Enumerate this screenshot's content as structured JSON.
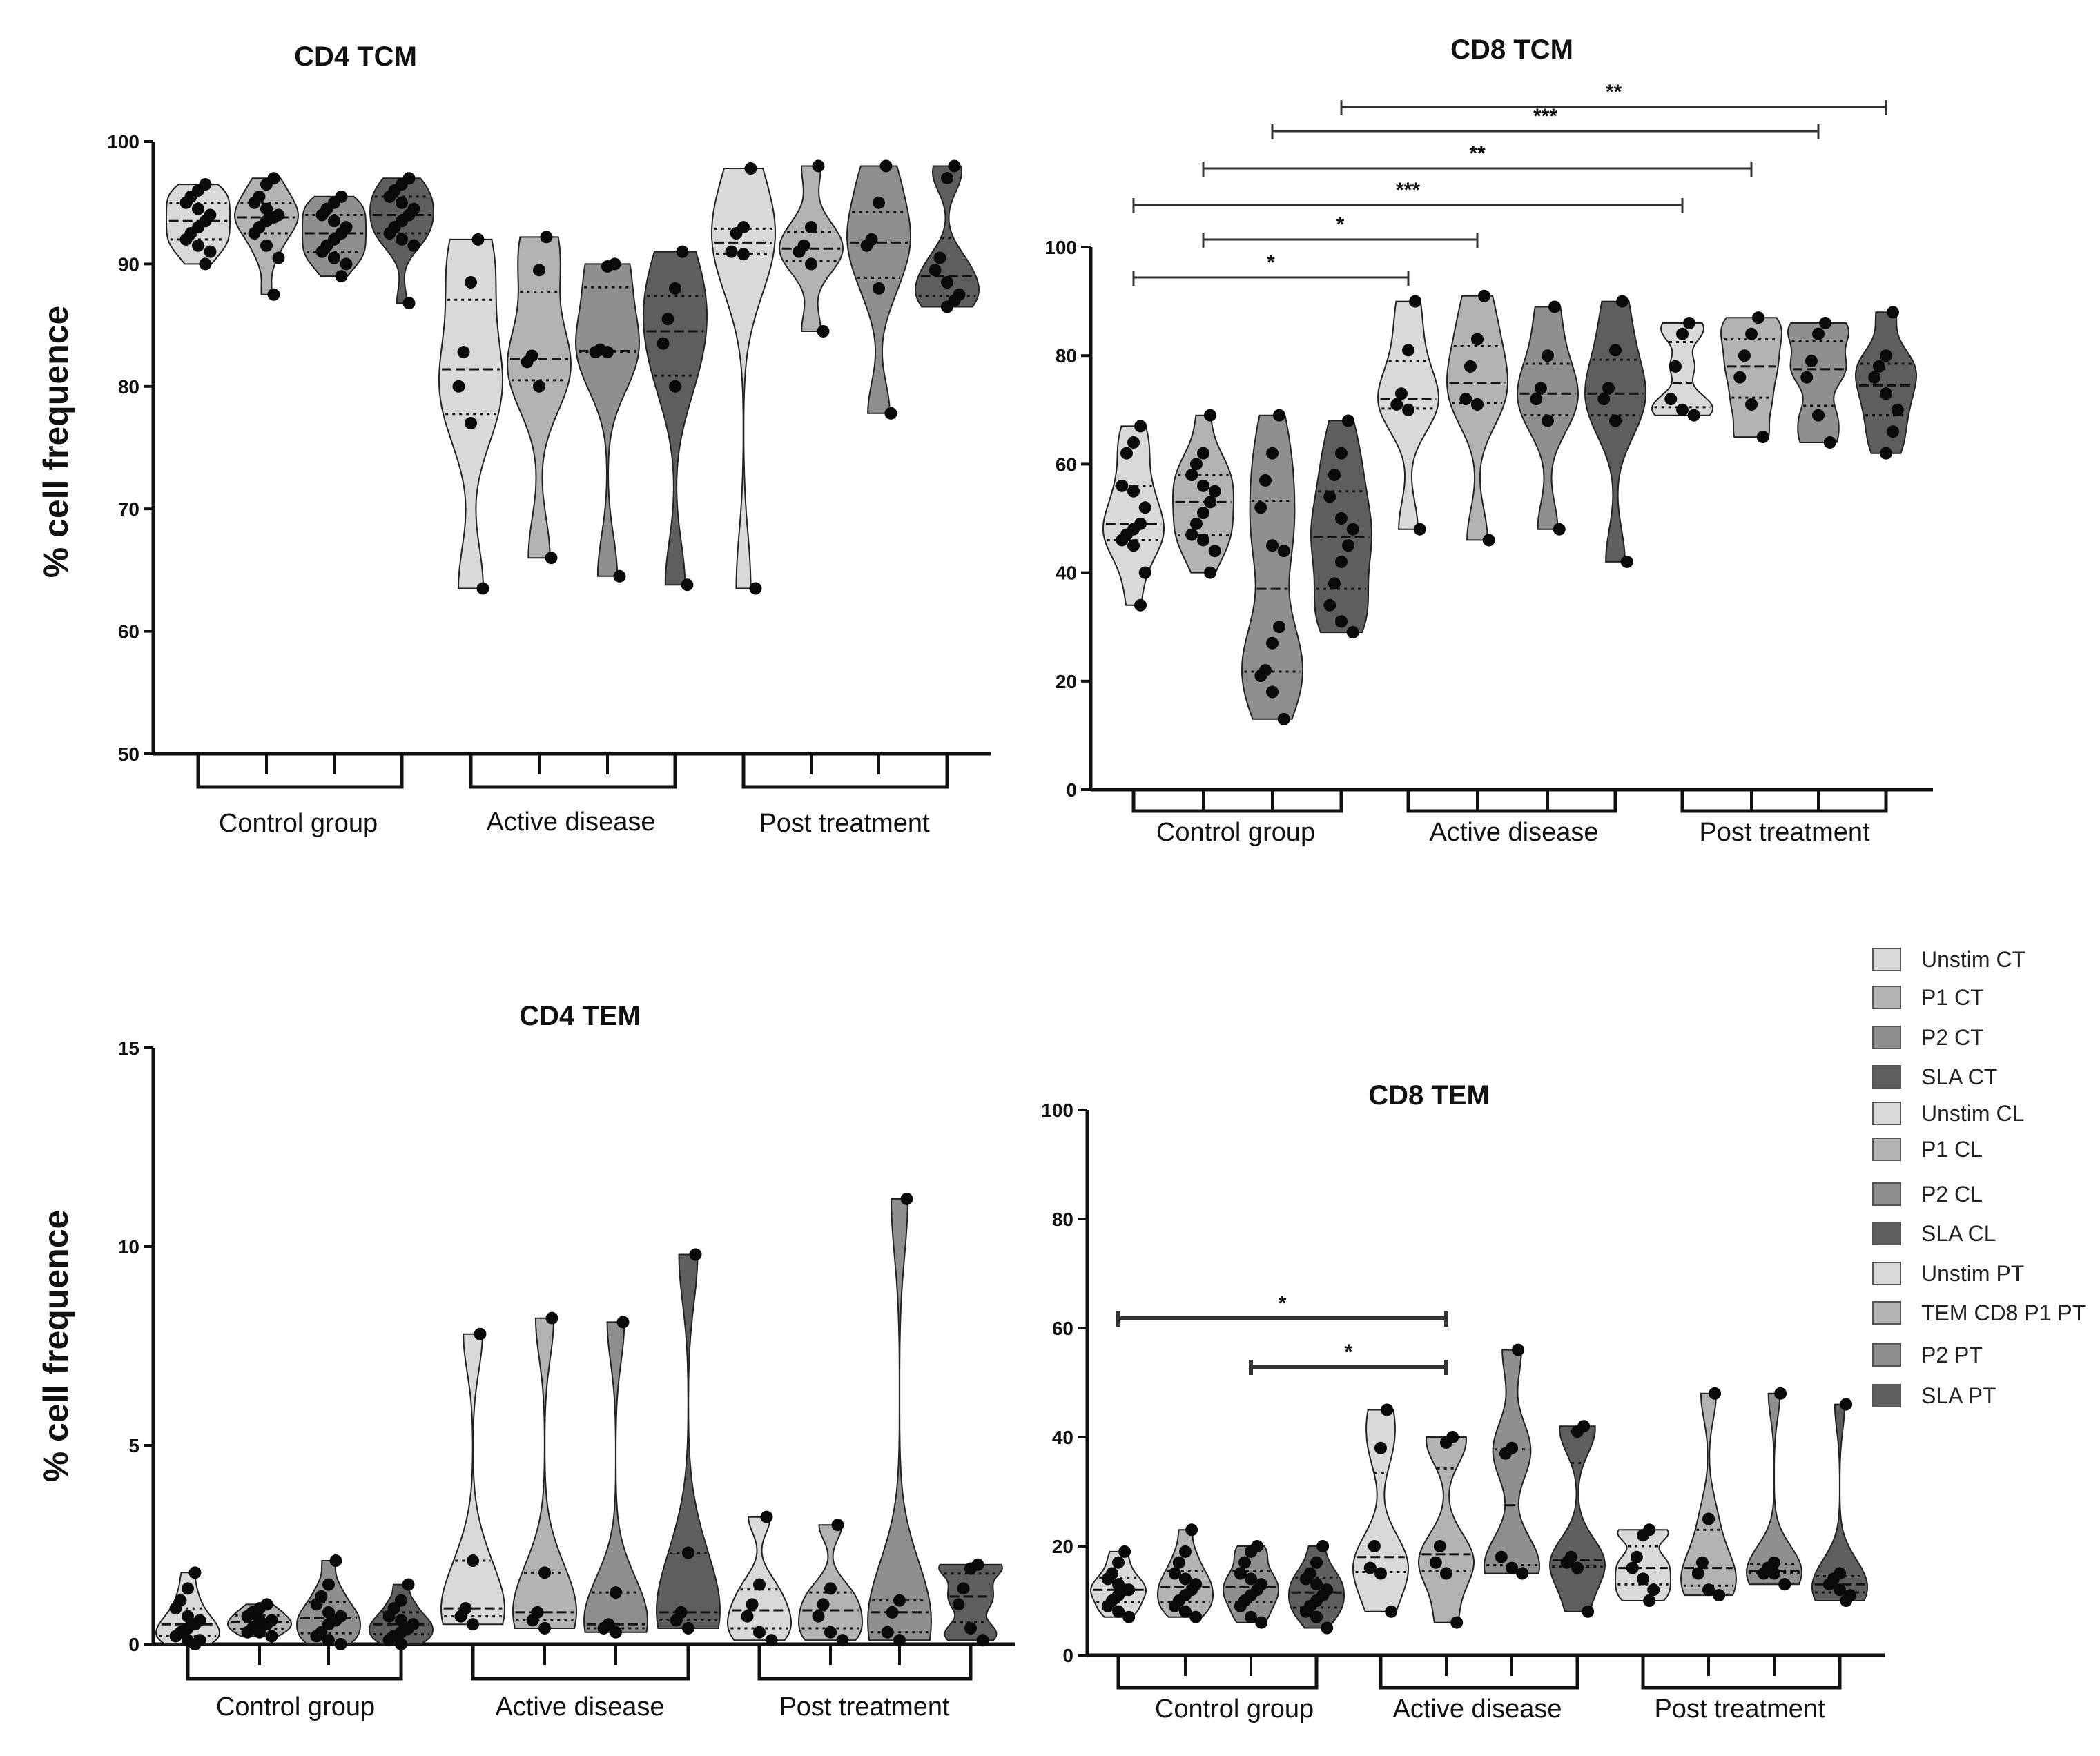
{
  "colors": {
    "Unstim": "#d9d9d9",
    "P1": "#b3b3b3",
    "P2": "#8f8f8f",
    "SLA": "#5e5e5e",
    "axis": "#111111",
    "dot": "#0a0a0a"
  },
  "legend": [
    {
      "label": "Unstim CT",
      "color": "#d9d9d9"
    },
    {
      "label": "P1 CT",
      "color": "#b3b3b3"
    },
    {
      "label": "P2 CT",
      "color": "#8f8f8f"
    },
    {
      "label": "SLA CT",
      "color": "#5e5e5e"
    },
    {
      "label": "Unstim CL",
      "color": "#d9d9d9"
    },
    {
      "label": "P1 CL",
      "color": "#b3b3b3"
    },
    {
      "label": "P2 CL",
      "color": "#8f8f8f"
    },
    {
      "label": "SLA CL",
      "color": "#5e5e5e"
    },
    {
      "label": "Unstim PT",
      "color": "#d9d9d9"
    },
    {
      "label": "TEM CD8 P1 PT",
      "color": "#b3b3b3"
    },
    {
      "label": "P2 PT",
      "color": "#8f8f8f"
    },
    {
      "label": "SLA PT",
      "color": "#5e5e5e"
    }
  ],
  "chart_data": [
    {
      "type": "violin",
      "title": "CD4 TCM",
      "ylabel": "% cell frequence",
      "ylim": [
        50,
        100
      ],
      "yticks": [
        50,
        60,
        70,
        80,
        90,
        100
      ],
      "groups": [
        "Control group",
        "Active disease",
        "Post treatment"
      ],
      "conditions": [
        "Unstim",
        "P1",
        "P2",
        "SLA"
      ],
      "series": [
        {
          "group": "Control group",
          "condition": "Unstim",
          "values": [
            96.5,
            96.0,
            95.5,
            95.0,
            94.5,
            94.0,
            93.5,
            93.0,
            92.5,
            92.0,
            91.5,
            91.0,
            90.0
          ]
        },
        {
          "group": "Control group",
          "condition": "P1",
          "values": [
            97.0,
            96.5,
            95.5,
            95.0,
            94.5,
            94.0,
            93.8,
            93.5,
            93.0,
            92.5,
            91.5,
            90.5,
            87.5
          ]
        },
        {
          "group": "Control group",
          "condition": "P2",
          "values": [
            95.5,
            95.0,
            94.5,
            94.0,
            93.5,
            93.0,
            92.5,
            92.0,
            91.5,
            91.0,
            90.5,
            90.0,
            89.0
          ]
        },
        {
          "group": "Control group",
          "condition": "SLA",
          "values": [
            97.0,
            96.5,
            96.0,
            95.5,
            95.0,
            94.5,
            94.0,
            93.5,
            93.0,
            92.5,
            92.0,
            91.5,
            86.8
          ]
        },
        {
          "group": "Active disease",
          "condition": "Unstim",
          "values": [
            92.0,
            88.5,
            82.8,
            80.0,
            77.0,
            63.5
          ]
        },
        {
          "group": "Active disease",
          "condition": "P1",
          "values": [
            92.2,
            89.5,
            82.5,
            82.0,
            80.0,
            66.0
          ]
        },
        {
          "group": "Active disease",
          "condition": "P2",
          "values": [
            90.0,
            89.8,
            83.0,
            82.8,
            82.8,
            64.5
          ]
        },
        {
          "group": "Active disease",
          "condition": "SLA",
          "values": [
            91.0,
            88.0,
            85.5,
            83.5,
            80.0,
            63.8
          ]
        },
        {
          "group": "Post treatment",
          "condition": "Unstim",
          "values": [
            97.8,
            93.0,
            92.5,
            91.0,
            90.8,
            63.5
          ]
        },
        {
          "group": "Post treatment",
          "condition": "P1",
          "values": [
            98.0,
            93.0,
            91.5,
            91.0,
            90.0,
            84.5
          ]
        },
        {
          "group": "Post treatment",
          "condition": "P2",
          "values": [
            98.0,
            95.0,
            92.0,
            91.5,
            88.0,
            77.8
          ]
        },
        {
          "group": "Post treatment",
          "condition": "SLA",
          "values": [
            98.0,
            97.0,
            90.5,
            89.5,
            88.5,
            87.5,
            87.0,
            86.5
          ]
        }
      ],
      "significance": []
    },
    {
      "type": "violin",
      "title": "CD8 TCM",
      "ylabel": "",
      "ylim": [
        0,
        100
      ],
      "yticks": [
        0,
        20,
        40,
        60,
        80,
        100
      ],
      "groups": [
        "Control group",
        "Active disease",
        "Post treatment"
      ],
      "conditions": [
        "Unstim",
        "P1",
        "P2",
        "SLA"
      ],
      "series": [
        {
          "group": "Control group",
          "condition": "Unstim",
          "values": [
            67,
            64,
            62,
            56,
            55,
            52,
            49,
            48,
            47,
            46,
            45,
            40,
            34
          ]
        },
        {
          "group": "Control group",
          "condition": "P1",
          "values": [
            69,
            62,
            60,
            58,
            56,
            55,
            53,
            51,
            49,
            47,
            46,
            44,
            40
          ]
        },
        {
          "group": "Control group",
          "condition": "P2",
          "values": [
            69,
            62,
            57,
            52,
            45,
            44,
            30,
            27,
            22,
            21,
            18,
            13
          ]
        },
        {
          "group": "Control group",
          "condition": "SLA",
          "values": [
            68,
            62,
            58,
            54,
            50,
            48,
            45,
            42,
            38,
            34,
            31,
            29
          ]
        },
        {
          "group": "Active disease",
          "condition": "Unstim",
          "values": [
            90,
            81,
            73,
            71,
            70,
            48
          ]
        },
        {
          "group": "Active disease",
          "condition": "P1",
          "values": [
            91,
            83,
            78,
            72,
            71,
            46
          ]
        },
        {
          "group": "Active disease",
          "condition": "P2",
          "values": [
            89,
            80,
            74,
            72,
            68,
            48
          ]
        },
        {
          "group": "Active disease",
          "condition": "SLA",
          "values": [
            90,
            81,
            74,
            72,
            68,
            42
          ]
        },
        {
          "group": "Post treatment",
          "condition": "Unstim",
          "values": [
            86,
            84,
            78,
            72,
            70,
            69
          ]
        },
        {
          "group": "Post treatment",
          "condition": "P1",
          "values": [
            87,
            84,
            80,
            76,
            71,
            65
          ]
        },
        {
          "group": "Post treatment",
          "condition": "P2",
          "values": [
            86,
            84,
            79,
            76,
            69,
            64
          ]
        },
        {
          "group": "Post treatment",
          "condition": "SLA",
          "values": [
            88,
            80,
            78,
            76,
            73,
            70,
            66,
            62
          ]
        }
      ],
      "significance": [
        {
          "from": 0,
          "to": 4,
          "label": "*"
        },
        {
          "from": 1,
          "to": 5,
          "label": "*"
        },
        {
          "from": 0,
          "to": 8,
          "label": "***"
        },
        {
          "from": 1,
          "to": 9,
          "label": "**"
        },
        {
          "from": 2,
          "to": 10,
          "label": "***"
        },
        {
          "from": 3,
          "to": 11,
          "label": "**"
        }
      ]
    },
    {
      "type": "violin",
      "title": "CD4 TEM",
      "ylabel": "% cell frequence",
      "ylim": [
        0,
        15
      ],
      "yticks": [
        0,
        5,
        10,
        15
      ],
      "groups": [
        "Control group",
        "Active disease",
        "Post treatment"
      ],
      "conditions": [
        "Unstim",
        "P1",
        "P2",
        "SLA"
      ],
      "series": [
        {
          "group": "Control group",
          "condition": "Unstim",
          "values": [
            1.8,
            1.4,
            1.1,
            0.9,
            0.7,
            0.6,
            0.5,
            0.4,
            0.3,
            0.2,
            0.1,
            0.1,
            0.0
          ]
        },
        {
          "group": "Control group",
          "condition": "P1",
          "values": [
            1.0,
            0.9,
            0.8,
            0.7,
            0.6,
            0.6,
            0.5,
            0.5,
            0.4,
            0.3,
            0.3,
            0.2
          ]
        },
        {
          "group": "Control group",
          "condition": "P2",
          "values": [
            2.1,
            1.5,
            1.2,
            1.0,
            0.8,
            0.7,
            0.6,
            0.5,
            0.3,
            0.2,
            0.1,
            0.0
          ]
        },
        {
          "group": "Control group",
          "condition": "SLA",
          "values": [
            1.5,
            1.1,
            0.9,
            0.7,
            0.6,
            0.5,
            0.4,
            0.3,
            0.2,
            0.1,
            0.0
          ]
        },
        {
          "group": "Active disease",
          "condition": "Unstim",
          "values": [
            7.8,
            2.1,
            0.9,
            0.7,
            0.5
          ]
        },
        {
          "group": "Active disease",
          "condition": "P1",
          "values": [
            8.2,
            1.8,
            0.8,
            0.6,
            0.4
          ]
        },
        {
          "group": "Active disease",
          "condition": "P2",
          "values": [
            8.1,
            1.3,
            0.5,
            0.4,
            0.3
          ]
        },
        {
          "group": "Active disease",
          "condition": "SLA",
          "values": [
            9.8,
            2.3,
            0.8,
            0.6,
            0.4
          ]
        },
        {
          "group": "Post treatment",
          "condition": "Unstim",
          "values": [
            3.2,
            1.5,
            1.0,
            0.7,
            0.3,
            0.1
          ]
        },
        {
          "group": "Post treatment",
          "condition": "P1",
          "values": [
            3.0,
            1.4,
            1.0,
            0.7,
            0.3,
            0.1
          ]
        },
        {
          "group": "Post treatment",
          "condition": "P2",
          "values": [
            11.2,
            1.1,
            0.8,
            0.3,
            0.1
          ]
        },
        {
          "group": "Post treatment",
          "condition": "SLA",
          "values": [
            2.0,
            1.9,
            1.4,
            1.0,
            0.4,
            0.1
          ]
        }
      ],
      "significance": []
    },
    {
      "type": "violin",
      "title": "CD8 TEM",
      "ylabel": "",
      "ylim": [
        0,
        100
      ],
      "yticks": [
        0,
        20,
        40,
        60,
        80,
        100
      ],
      "groups": [
        "Control group",
        "Active disease",
        "Post treatment"
      ],
      "conditions": [
        "Unstim",
        "P1",
        "P2",
        "SLA"
      ],
      "series": [
        {
          "group": "Control group",
          "condition": "Unstim",
          "values": [
            19,
            17,
            15,
            14,
            13,
            12,
            12,
            11,
            10,
            9,
            8,
            7
          ]
        },
        {
          "group": "Control group",
          "condition": "P1",
          "values": [
            23,
            19,
            17,
            15,
            14,
            13,
            12,
            11,
            10,
            9,
            8,
            7
          ]
        },
        {
          "group": "Control group",
          "condition": "P2",
          "values": [
            20,
            19,
            17,
            15,
            14,
            13,
            12,
            11,
            10,
            9,
            7,
            6
          ]
        },
        {
          "group": "Control group",
          "condition": "SLA",
          "values": [
            20,
            17,
            15,
            14,
            13,
            12,
            11,
            10,
            9,
            8,
            7,
            5
          ]
        },
        {
          "group": "Active disease",
          "condition": "Unstim",
          "values": [
            45,
            38,
            20,
            16,
            15,
            8
          ]
        },
        {
          "group": "Active disease",
          "condition": "P1",
          "values": [
            40,
            39,
            20,
            17,
            15,
            6
          ]
        },
        {
          "group": "Active disease",
          "condition": "P2",
          "values": [
            56,
            38,
            37,
            18,
            16,
            15
          ]
        },
        {
          "group": "Active disease",
          "condition": "SLA",
          "values": [
            42,
            41,
            18,
            17,
            16,
            8
          ]
        },
        {
          "group": "Post treatment",
          "condition": "Unstim",
          "values": [
            23,
            22,
            18,
            16,
            14,
            12,
            10
          ]
        },
        {
          "group": "Post treatment",
          "condition": "P1",
          "values": [
            48,
            25,
            17,
            15,
            12,
            11
          ]
        },
        {
          "group": "Post treatment",
          "condition": "P2",
          "values": [
            48,
            17,
            16,
            15,
            15,
            13
          ]
        },
        {
          "group": "Post treatment",
          "condition": "SLA",
          "values": [
            46,
            15,
            14,
            13,
            12,
            11,
            10
          ]
        }
      ],
      "significance": [
        {
          "from": 0,
          "to": 5,
          "label": "*"
        },
        {
          "from": 2,
          "to": 5,
          "label": "*"
        }
      ]
    }
  ]
}
